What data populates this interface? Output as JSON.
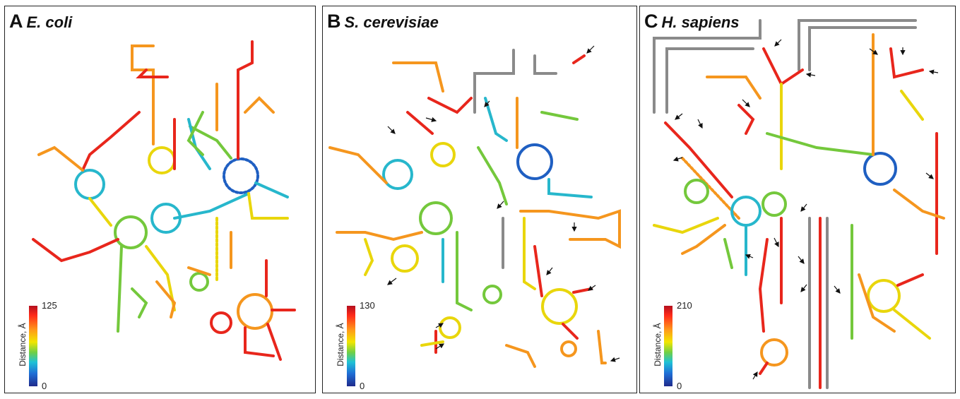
{
  "panels": [
    {
      "letter": "A",
      "species": "E. coli",
      "colorbar": {
        "label": "Distance, Å",
        "min": "0",
        "max": "125"
      }
    },
    {
      "letter": "B",
      "species": "S. cerevisiae",
      "colorbar": {
        "label": "Distance, Å",
        "min": "0",
        "max": "130"
      }
    },
    {
      "letter": "C",
      "species": "H. sapiens",
      "colorbar": {
        "label": "Distance, Å",
        "min": "0",
        "max": "210"
      }
    }
  ],
  "colors": {
    "red": "#e8261c",
    "orange": "#f5961e",
    "yellow": "#e9d60c",
    "green": "#74c83c",
    "cyan": "#27b7cc",
    "blue": "#1f5fc2",
    "gray": "#8a8a8a"
  }
}
